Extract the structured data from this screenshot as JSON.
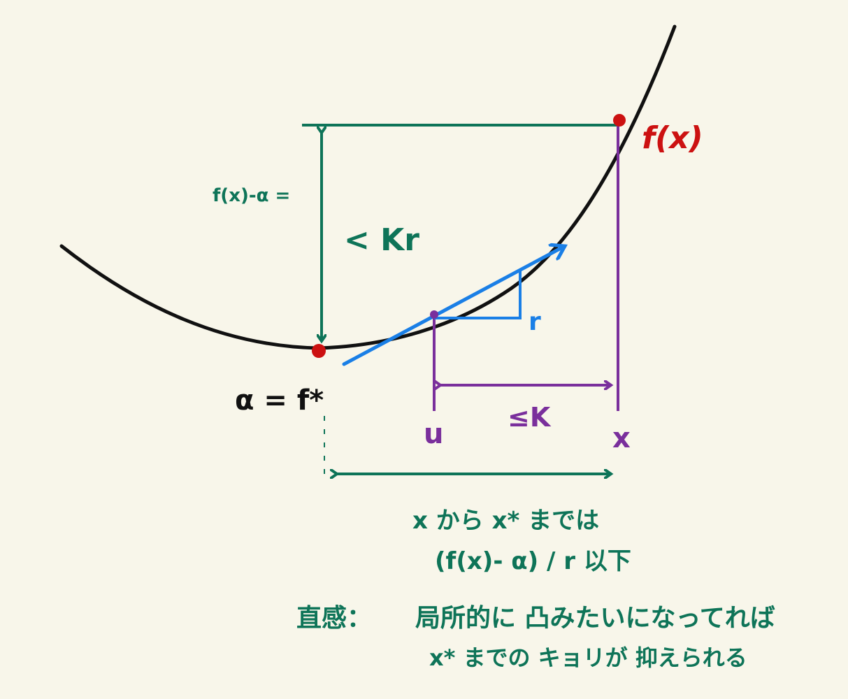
{
  "colors": {
    "background": "#f8f6ea",
    "curve": "#111111",
    "green": "#0e7458",
    "purple": "#7a2f9c",
    "blue": "#1a7fe6",
    "red": "#cc1111"
  },
  "labels": {
    "fx_point": "f(x)",
    "fx_minus_alpha": "f(x)-α =",
    "lt_kr": "< Kr",
    "slope_r": "r",
    "alpha_eq": "α = f*",
    "u": "u",
    "x": "x",
    "le_k": "≤K"
  },
  "notes": {
    "line1": "x から x* までは",
    "line2": "(f(x)- α) / r 以下",
    "intuition_label": "直感：",
    "intuition_line1": "局所的に 凸みたいになってれば",
    "intuition_line2": "x* までの キョリが 抑えられる"
  }
}
